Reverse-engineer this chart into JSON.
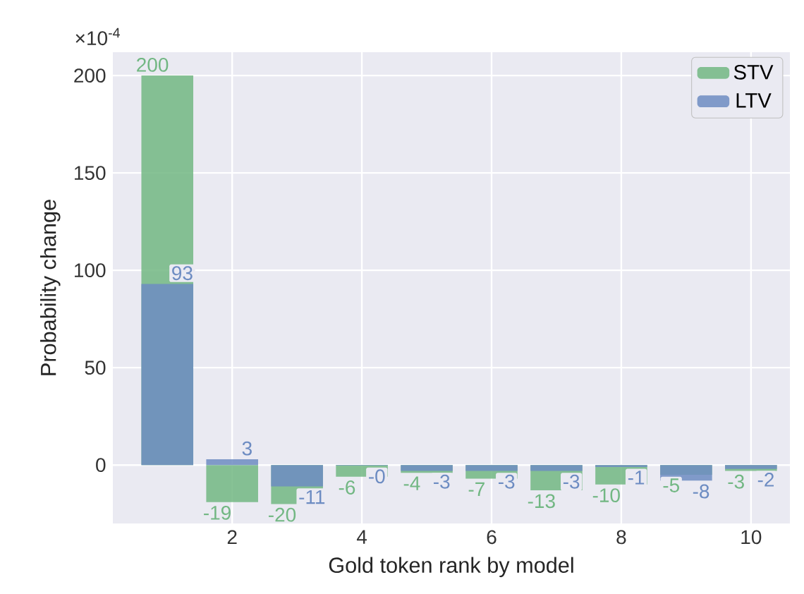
{
  "chart_data": {
    "type": "bar",
    "xlabel": "Gold token rank by model",
    "ylabel": "Probability change",
    "annotations": [
      "×10$^{-4}$"
    ],
    "x": [
      1,
      2,
      3,
      4,
      5,
      6,
      7,
      8,
      9,
      10
    ],
    "series": [
      {
        "name": "STV",
        "color": "#72b783",
        "values": [
          200,
          -19,
          -20,
          -6,
          -4,
          -7,
          -13,
          -10,
          -5,
          -3
        ],
        "value_labels": [
          "200",
          "-19",
          "-20",
          "-6",
          "-4",
          "-7",
          "-13",
          "-10",
          "-5",
          "-3"
        ]
      },
      {
        "name": "LTV",
        "color": "#6d8cc2",
        "values": [
          93,
          3,
          -11,
          -0.3,
          -3,
          -3,
          -3,
          -1,
          -8,
          -2
        ],
        "value_labels": [
          "93",
          "3",
          "-11",
          "-0",
          "-3",
          "-3",
          "-3",
          "-1",
          "-8",
          "-2"
        ]
      }
    ],
    "xlim": [
      0.16,
      10.6
    ],
    "ylim": [
      -30,
      212
    ],
    "xticks": [
      2,
      4,
      6,
      8,
      10
    ],
    "yticks": [
      0,
      50,
      100,
      150,
      200
    ],
    "grid": true,
    "legend": "top right"
  }
}
